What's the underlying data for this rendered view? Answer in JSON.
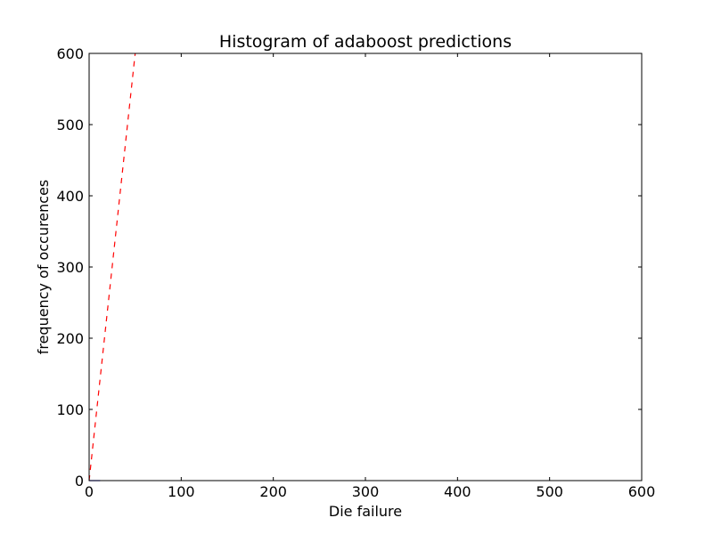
{
  "chart_data": {
    "type": "line",
    "title": "Histogram of adaboost predictions",
    "xlabel": "Die failure",
    "ylabel": "frequency of occurences",
    "xlim": [
      0,
      600
    ],
    "ylim": [
      0,
      600
    ],
    "xticks": [
      0,
      100,
      200,
      300,
      400,
      500,
      600
    ],
    "yticks": [
      0,
      100,
      200,
      300,
      400,
      500,
      600
    ],
    "grid": false,
    "series": [
      {
        "color": "#ff0000",
        "style": "dashed",
        "points": [
          [
            0,
            0
          ],
          [
            50,
            600
          ]
        ]
      },
      {
        "color": "#0000ff",
        "style": "solid",
        "points": [
          [
            0,
            0
          ],
          [
            12,
            0
          ]
        ]
      }
    ]
  }
}
